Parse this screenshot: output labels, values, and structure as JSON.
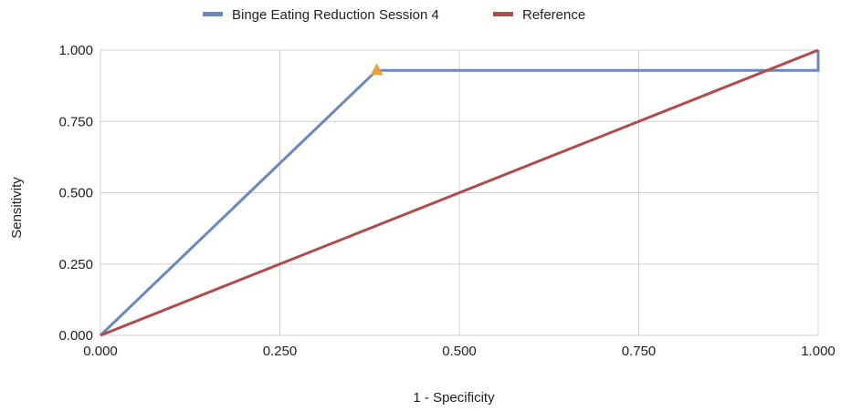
{
  "chart_data": {
    "type": "line",
    "title": "",
    "xlabel": "1 - Specificity",
    "ylabel": "Sensitivity",
    "xlim": [
      0,
      1
    ],
    "ylim": [
      0,
      1
    ],
    "x_ticks": [
      "0.000",
      "0.250",
      "0.500",
      "0.750",
      "1.000"
    ],
    "y_ticks": [
      "0.000",
      "0.250",
      "0.500",
      "0.750",
      "1.000"
    ],
    "grid": true,
    "legend_position": "top-center",
    "series": [
      {
        "name": "Binge Eating Reduction Session 4",
        "color": "#6a87c1",
        "points": [
          {
            "x": 0.0,
            "y": 0.0
          },
          {
            "x": 0.385,
            "y": 0.929
          },
          {
            "x": 1.0,
            "y": 0.929
          },
          {
            "x": 1.0,
            "y": 1.0
          }
        ]
      },
      {
        "name": "Reference",
        "color": "#b04c4b",
        "points": [
          {
            "x": 0.0,
            "y": 0.0
          },
          {
            "x": 1.0,
            "y": 1.0
          }
        ]
      }
    ],
    "markers": [
      {
        "shape": "triangle",
        "color": "#e8a33a",
        "x": 0.385,
        "y": 0.929
      }
    ]
  }
}
